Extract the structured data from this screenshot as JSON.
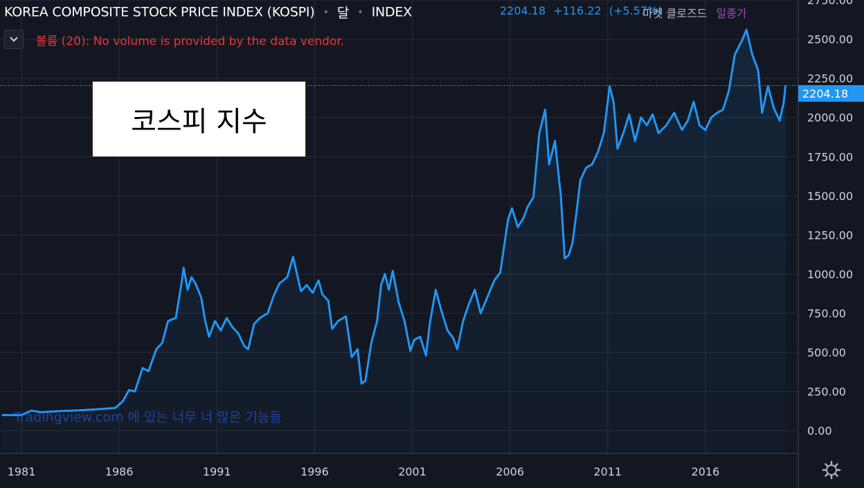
{
  "header": {
    "title": "KOREA COMPOSITE STOCK PRICE INDEX (KOSPI)",
    "interval": "달",
    "exchange": "INDEX",
    "last": "2204.18",
    "change": "+116.22",
    "change_pct": "(+5.57%)",
    "market_status": "마켓 클로즈드",
    "session": "일종가"
  },
  "volume": {
    "toggle_icon": "chevron-down-icon",
    "message": "볼륨 (20): No volume is provided by the data vendor."
  },
  "overlay": {
    "text": "코스피 지수"
  },
  "watermark": {
    "text": "Tradingview.com 에 있는 너무 너 많은 기능들"
  },
  "price_label": "2204.18",
  "settings_icon": "gear-icon",
  "colors": {
    "background": "#131722",
    "line": "#2196f3",
    "grid": "#2a2e39",
    "axis_text": "#d1d4dc",
    "alert": "#e53935"
  },
  "chart_data": {
    "type": "line",
    "title": "",
    "xlabel": "",
    "ylabel": "",
    "ylim": [
      -145,
      2750
    ],
    "xlim": [
      1979.9,
      2020.75
    ],
    "yticks": [
      "2750.00",
      "2500.00",
      "2250.00",
      "2000.00",
      "1750.00",
      "1500.00",
      "1250.00",
      "1000.00",
      "750.00",
      "500.00",
      "250.00",
      "0.00"
    ],
    "xticks": [
      "1981",
      "1986",
      "1991",
      "1996",
      "2001",
      "2006",
      "2011",
      "2016"
    ],
    "grid": true,
    "series": [
      {
        "values": [
          [
            1980.0,
            100
          ],
          [
            1981.0,
            100
          ],
          [
            1981.5,
            128
          ],
          [
            1982.0,
            118
          ],
          [
            1983.0,
            125
          ],
          [
            1984.0,
            130
          ],
          [
            1985.0,
            138
          ],
          [
            1985.8,
            145
          ],
          [
            1986.2,
            190
          ],
          [
            1986.5,
            260
          ],
          [
            1986.8,
            250
          ],
          [
            1987.2,
            400
          ],
          [
            1987.5,
            380
          ],
          [
            1987.9,
            520
          ],
          [
            1988.2,
            560
          ],
          [
            1988.5,
            700
          ],
          [
            1988.9,
            720
          ],
          [
            1989.2,
            950
          ],
          [
            1989.3,
            1040
          ],
          [
            1989.5,
            900
          ],
          [
            1989.7,
            980
          ],
          [
            1989.9,
            940
          ],
          [
            1990.2,
            850
          ],
          [
            1990.4,
            700
          ],
          [
            1990.6,
            600
          ],
          [
            1990.9,
            700
          ],
          [
            1991.2,
            640
          ],
          [
            1991.5,
            720
          ],
          [
            1991.8,
            660
          ],
          [
            1992.1,
            620
          ],
          [
            1992.4,
            540
          ],
          [
            1992.6,
            520
          ],
          [
            1992.9,
            680
          ],
          [
            1993.2,
            720
          ],
          [
            1993.6,
            750
          ],
          [
            1993.9,
            860
          ],
          [
            1994.2,
            940
          ],
          [
            1994.6,
            980
          ],
          [
            1994.9,
            1110
          ],
          [
            1995.1,
            1000
          ],
          [
            1995.3,
            890
          ],
          [
            1995.6,
            930
          ],
          [
            1995.9,
            880
          ],
          [
            1996.2,
            960
          ],
          [
            1996.4,
            870
          ],
          [
            1996.7,
            830
          ],
          [
            1996.9,
            650
          ],
          [
            1997.2,
            700
          ],
          [
            1997.6,
            730
          ],
          [
            1997.9,
            470
          ],
          [
            1998.2,
            520
          ],
          [
            1998.4,
            300
          ],
          [
            1998.6,
            320
          ],
          [
            1998.9,
            560
          ],
          [
            1999.2,
            700
          ],
          [
            1999.4,
            930
          ],
          [
            1999.6,
            1000
          ],
          [
            1999.8,
            900
          ],
          [
            2000.0,
            1020
          ],
          [
            2000.3,
            820
          ],
          [
            2000.6,
            700
          ],
          [
            2000.9,
            510
          ],
          [
            2001.1,
            580
          ],
          [
            2001.4,
            600
          ],
          [
            2001.7,
            480
          ],
          [
            2001.9,
            690
          ],
          [
            2002.2,
            900
          ],
          [
            2002.5,
            760
          ],
          [
            2002.8,
            640
          ],
          [
            2003.1,
            590
          ],
          [
            2003.3,
            520
          ],
          [
            2003.6,
            700
          ],
          [
            2003.9,
            810
          ],
          [
            2004.2,
            900
          ],
          [
            2004.5,
            750
          ],
          [
            2004.9,
            870
          ],
          [
            2005.2,
            960
          ],
          [
            2005.5,
            1010
          ],
          [
            2005.9,
            1350
          ],
          [
            2006.1,
            1420
          ],
          [
            2006.4,
            1300
          ],
          [
            2006.7,
            1360
          ],
          [
            2006.9,
            1430
          ],
          [
            2007.2,
            1490
          ],
          [
            2007.5,
            1900
          ],
          [
            2007.8,
            2050
          ],
          [
            2008.0,
            1700
          ],
          [
            2008.3,
            1850
          ],
          [
            2008.6,
            1500
          ],
          [
            2008.8,
            1100
          ],
          [
            2009.0,
            1120
          ],
          [
            2009.2,
            1200
          ],
          [
            2009.4,
            1390
          ],
          [
            2009.6,
            1600
          ],
          [
            2009.9,
            1680
          ],
          [
            2010.2,
            1700
          ],
          [
            2010.5,
            1780
          ],
          [
            2010.8,
            1900
          ],
          [
            2011.1,
            2200
          ],
          [
            2011.3,
            2100
          ],
          [
            2011.5,
            1800
          ],
          [
            2011.8,
            1900
          ],
          [
            2012.1,
            2020
          ],
          [
            2012.4,
            1850
          ],
          [
            2012.7,
            2000
          ],
          [
            2013.0,
            1950
          ],
          [
            2013.3,
            2020
          ],
          [
            2013.6,
            1900
          ],
          [
            2014.0,
            1950
          ],
          [
            2014.4,
            2030
          ],
          [
            2014.8,
            1920
          ],
          [
            2015.1,
            1980
          ],
          [
            2015.4,
            2100
          ],
          [
            2015.7,
            1950
          ],
          [
            2016.0,
            1920
          ],
          [
            2016.3,
            2000
          ],
          [
            2016.6,
            2030
          ],
          [
            2016.9,
            2050
          ],
          [
            2017.2,
            2170
          ],
          [
            2017.5,
            2400
          ],
          [
            2017.9,
            2500
          ],
          [
            2018.1,
            2560
          ],
          [
            2018.4,
            2400
          ],
          [
            2018.7,
            2300
          ],
          [
            2018.9,
            2030
          ],
          [
            2019.2,
            2200
          ],
          [
            2019.5,
            2060
          ],
          [
            2019.8,
            1980
          ],
          [
            2020.0,
            2090
          ],
          [
            2020.1,
            2204.18
          ]
        ]
      }
    ],
    "last_value": 2204.18
  }
}
